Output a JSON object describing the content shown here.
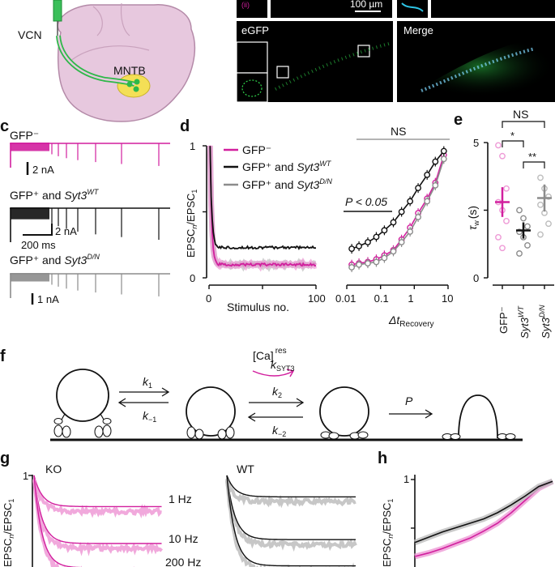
{
  "panel_letters": {
    "c": "c",
    "d": "d",
    "e": "e",
    "f": "f",
    "g": "g",
    "h": "h"
  },
  "colors": {
    "ko": "#d21f9e",
    "ko_light": "#ee9ad6",
    "wt": "#111111",
    "dn": "#8c8c8c",
    "dn_light": "#bdbdbd",
    "egfp": "#2fd14a"
  },
  "panel_ab": {
    "vcn": "VCN",
    "mntb": "MNTB",
    "scalebar": "100 µm",
    "egfp": "eGFP",
    "merge": "Merge"
  },
  "panel_c": {
    "trace1": "GFP⁻",
    "trace1_scale": "2 nA",
    "trace2_pre": "GFP⁺ and ",
    "trace2_gene": "Syt3",
    "trace2_sup": "WT",
    "trace2_scale_amp": "2 nA",
    "trace2_scale_time": "200 ms",
    "trace3_pre": "GFP⁺ and ",
    "trace3_gene": "Syt3",
    "trace3_sup": "D/N",
    "trace3_scale": "1 nA"
  },
  "panel_d": {
    "ylabel_pre": "EPSC",
    "ylabel_sub1": "n",
    "ylabel_mid": "/EPSC",
    "ylabel_sub2": "1",
    "xlabel_left": "Stimulus no.",
    "xlabel_right_pre": "Δt",
    "xlabel_right_sub": "Recovery",
    "legend": [
      {
        "pre": "GFP⁻",
        "gene": "",
        "sup": ""
      },
      {
        "pre": "GFP⁺ and ",
        "gene": "Syt3",
        "sup": "WT"
      },
      {
        "pre": "GFP⁺ and ",
        "gene": "Syt3",
        "sup": "D/N"
      }
    ],
    "ns": "NS",
    "pval": "P < 0.05"
  },
  "panel_e": {
    "ylabel": "(s)",
    "ysym": "τ",
    "ysym_sub": "w",
    "ns": "NS",
    "star1": "*",
    "star2": "**",
    "cat1": "GFP⁻",
    "cat2_gene": "Syt3",
    "cat2_sup": "WT",
    "cat3_gene": "Syt3",
    "cat3_sup": "D/N"
  },
  "panel_f": {
    "k1": "k",
    "k1_sub": "1",
    "km1": "k",
    "km1_sub": "−1",
    "k2": "k",
    "k2_sub": "2",
    "km2": "k",
    "km2_sub": "−2",
    "ca": "[Ca]",
    "ca_sup": "res",
    "ksyt": "k",
    "ksyt_sub": "SYT3",
    "p": "P"
  },
  "panel_g": {
    "ko": "KO",
    "wt": "WT",
    "f1": "1 Hz",
    "f10": "10 Hz",
    "f200": "200 Hz",
    "ytick": "1"
  },
  "panel_h": {
    "ytick": "1"
  },
  "chart_data": [
    {
      "panel": "d-left",
      "type": "line",
      "xlabel": "Stimulus no.",
      "ylabel": "EPSCn/EPSC1",
      "xlim": [
        0,
        100
      ],
      "ylim": [
        0,
        1
      ],
      "x_ticks": [
        0,
        50,
        100
      ],
      "x_tick_labels": [
        "0",
        "",
        "100"
      ],
      "y_ticks": [
        0,
        0.5,
        1
      ],
      "y_tick_labels": [
        "0",
        "",
        "1"
      ],
      "series": [
        {
          "name": "GFP⁻",
          "tau": 1.5,
          "plateau": 0.1
        },
        {
          "name": "GFP⁺ and Syt3WT",
          "tau": 1.5,
          "plateau": 0.23
        },
        {
          "name": "GFP⁺ and Syt3D/N",
          "tau": 1.5,
          "plateau": 0.1
        }
      ]
    },
    {
      "panel": "d-right",
      "type": "line",
      "xlabel": "ΔtRecovery",
      "xscale": "log",
      "xlim": [
        0.01,
        10
      ],
      "x_ticks": [
        0.01,
        0.1,
        1,
        10
      ],
      "x_tick_labels": [
        "0.01",
        "0.1",
        "1",
        "10"
      ],
      "ylim": [
        0,
        1
      ],
      "series": [
        {
          "name": "GFP⁻",
          "x": [
            0.014,
            0.023,
            0.042,
            0.075,
            0.13,
            0.24,
            0.42,
            0.75,
            1.3,
            2.4,
            4.2,
            7.5
          ],
          "y": [
            0.1,
            0.11,
            0.12,
            0.14,
            0.17,
            0.21,
            0.29,
            0.38,
            0.49,
            0.6,
            0.72,
            0.93
          ]
        },
        {
          "name": "GFP⁺ and Syt3WT",
          "x": [
            0.014,
            0.023,
            0.042,
            0.075,
            0.13,
            0.24,
            0.42,
            0.75,
            1.3,
            2.4,
            4.2,
            7.5
          ],
          "y": [
            0.22,
            0.24,
            0.27,
            0.31,
            0.36,
            0.42,
            0.5,
            0.58,
            0.68,
            0.78,
            0.88,
            0.96
          ]
        },
        {
          "name": "GFP⁺ and Syt3D/N",
          "x": [
            0.014,
            0.023,
            0.042,
            0.075,
            0.13,
            0.24,
            0.42,
            0.75,
            1.3,
            2.4,
            4.2,
            7.5
          ],
          "y": [
            0.08,
            0.1,
            0.11,
            0.12,
            0.15,
            0.2,
            0.27,
            0.35,
            0.46,
            0.58,
            0.7,
            0.9
          ]
        }
      ]
    },
    {
      "panel": "e",
      "type": "scatter",
      "ylabel": "τw (s)",
      "ylim": [
        0,
        5
      ],
      "y_ticks": [
        0,
        2.5,
        5
      ],
      "y_tick_labels": [
        "0",
        "",
        "5"
      ],
      "categories": [
        "GFP⁻",
        "Syt3WT",
        "Syt3D/N"
      ],
      "means": [
        2.8,
        1.75,
        2.95
      ],
      "errors": [
        0.55,
        0.3,
        0.5
      ],
      "points": [
        [
          4.9,
          4.5,
          3.3,
          2.8,
          2.5,
          2.1,
          1.5,
          1.1
        ],
        [
          2.5,
          2.2,
          1.9,
          1.7,
          1.5,
          1.2,
          0.9
        ],
        [
          3.7,
          3.3,
          3.0,
          2.7,
          2.4,
          2.0,
          1.6
        ]
      ]
    },
    {
      "panel": "g",
      "type": "line",
      "ylabel": "EPSCn/EPSC1",
      "ylim": [
        0,
        1
      ],
      "y_ticks": [
        1
      ],
      "series": [
        {
          "name": "1 Hz",
          "plateau": 0.68
        },
        {
          "name": "10 Hz",
          "plateau": 0.3
        },
        {
          "name": "200 Hz",
          "plateau": 0.05
        }
      ]
    },
    {
      "panel": "h",
      "type": "line",
      "ylabel": "EPSCn/EPSC1",
      "ylim": [
        0,
        1
      ],
      "y_ticks": [
        1
      ],
      "series": [
        {
          "name": "KO",
          "x": [
            0,
            0.1,
            0.2,
            0.3,
            0.4,
            0.5,
            0.6,
            0.7,
            0.8,
            0.9,
            1
          ],
          "y": [
            0.12,
            0.16,
            0.21,
            0.27,
            0.33,
            0.41,
            0.5,
            0.62,
            0.76,
            0.9,
            0.98
          ]
        },
        {
          "name": "WT",
          "x": [
            0,
            0.1,
            0.2,
            0.3,
            0.4,
            0.5,
            0.6,
            0.7,
            0.8,
            0.9,
            1
          ],
          "y": [
            0.28,
            0.34,
            0.4,
            0.45,
            0.5,
            0.55,
            0.62,
            0.71,
            0.81,
            0.92,
            0.98
          ]
        }
      ]
    }
  ]
}
